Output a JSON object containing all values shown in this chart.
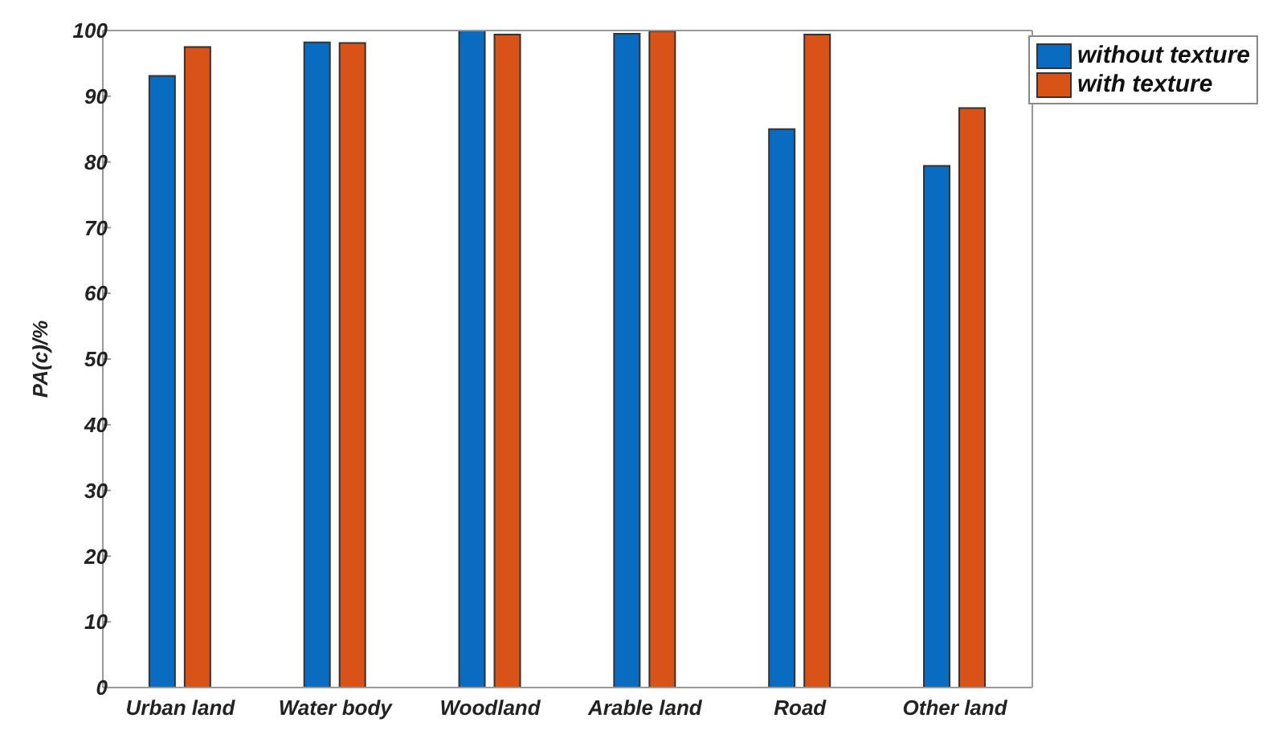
{
  "chart_data": {
    "type": "bar",
    "ylabel": "PA(c)/%",
    "categories": [
      "Urban land",
      "Water body",
      "Woodland",
      "Arable land",
      "Road",
      "Other land"
    ],
    "series": [
      {
        "name": "without texture",
        "color": "#0a6cc0",
        "values": [
          93.1,
          98.2,
          100,
          99.5,
          85,
          79.4
        ]
      },
      {
        "name": "with texture",
        "color": "#d95319",
        "values": [
          97.5,
          98.1,
          99.4,
          99.9,
          99.4,
          88.2
        ]
      }
    ],
    "ylim": [
      0,
      100
    ],
    "yticks": [
      0,
      10,
      20,
      30,
      40,
      50,
      60,
      70,
      80,
      90,
      100
    ],
    "legend": "top right"
  }
}
